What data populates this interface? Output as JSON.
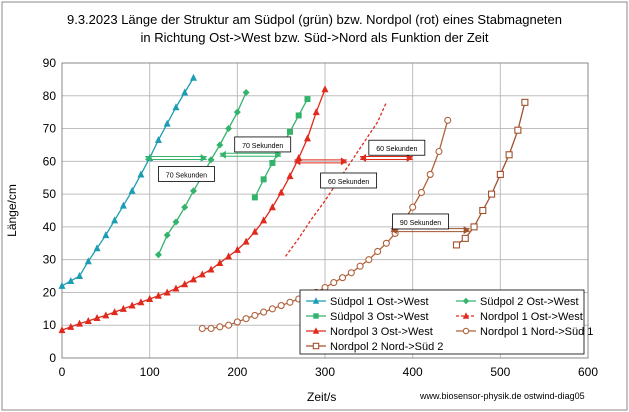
{
  "chart_data": {
    "type": "scatter",
    "title_line1": "9.3.2023 Länge der Struktur am Südpol (grün) bzw. Nordpol (rot) eines Stabmagneten",
    "title_line2": "in Richtung Ost->West  bzw. Süd->Nord als Funktion der Zeit",
    "xlabel": "Zeit/s",
    "ylabel": "Länge/cm",
    "xlim": [
      0,
      600
    ],
    "ylim": [
      0,
      90
    ],
    "xticks": [
      0,
      100,
      200,
      300,
      400,
      500,
      600
    ],
    "yticks": [
      0,
      10,
      20,
      30,
      40,
      50,
      60,
      70,
      80,
      90
    ],
    "grid": true,
    "legend_position": "bottom-right",
    "credit": "www.biosensor-physik.de  ostwind-diag05",
    "series": [
      {
        "name": "Südpol 1 Ost->West",
        "color": "#1c9db4",
        "marker": "triangle",
        "line": "solid",
        "x": [
          0,
          10,
          20,
          30,
          40,
          50,
          60,
          70,
          80,
          90,
          100,
          110,
          120,
          130,
          140,
          150
        ],
        "y": [
          22,
          23.5,
          25,
          29.5,
          33.5,
          37.5,
          42,
          46.5,
          51,
          56,
          61,
          66.5,
          71.5,
          76.5,
          81,
          85.5
        ]
      },
      {
        "name": "Südpol 2 Ost->West",
        "color": "#33b36b",
        "marker": "diamond",
        "line": "solid",
        "x": [
          110,
          120,
          130,
          140,
          150,
          160,
          170,
          180,
          190,
          200,
          210
        ],
        "y": [
          31.5,
          37.5,
          41.5,
          46,
          51,
          55.5,
          60.5,
          65,
          70,
          75,
          81
        ]
      },
      {
        "name": "Südpol 3 Ost->West",
        "color": "#33b36b",
        "marker": "square",
        "line": "solid",
        "x": [
          220,
          230,
          240,
          250,
          260,
          270,
          280
        ],
        "y": [
          49,
          54.5,
          59.5,
          64,
          69,
          74,
          79
        ]
      },
      {
        "name": "Nordpol 1 Ost->West",
        "color": "#e02a1d",
        "marker": "triangle",
        "line": "dotted",
        "x": [
          255,
          270,
          285,
          300,
          315,
          330,
          345,
          360,
          370
        ],
        "y": [
          31,
          36.5,
          42.5,
          48,
          54,
          60,
          66,
          72,
          78
        ]
      },
      {
        "name": "Nordpol 3 Ost->West",
        "color": "#e02a1d",
        "marker": "triangle",
        "line": "solid",
        "x": [
          0,
          10,
          20,
          30,
          40,
          50,
          60,
          70,
          80,
          90,
          100,
          110,
          120,
          130,
          140,
          150,
          160,
          170,
          180,
          190,
          200,
          210,
          220,
          230,
          240,
          250,
          260,
          270,
          280,
          290,
          300
        ],
        "y": [
          8.5,
          9.5,
          10.5,
          11.3,
          12.2,
          13,
          14,
          15,
          16,
          17,
          18,
          19,
          20,
          21.2,
          22.5,
          24,
          25.5,
          27,
          29,
          31,
          33,
          35.5,
          38.5,
          42,
          46,
          50.5,
          55.5,
          61,
          67,
          75,
          82
        ]
      },
      {
        "name": "Nordpol 1 Nord->Süd 1",
        "color": "#b0623a",
        "marker": "circle-open",
        "line": "solid",
        "x": [
          160,
          170,
          180,
          190,
          200,
          210,
          220,
          230,
          240,
          250,
          260,
          270,
          280,
          290,
          300,
          310,
          320,
          330,
          340,
          350,
          360,
          370,
          380,
          390,
          400,
          410,
          420,
          430,
          440
        ],
        "y": [
          9,
          9,
          9.5,
          10,
          11,
          12,
          13,
          14,
          15,
          16,
          17,
          18,
          19,
          20,
          21.5,
          23,
          24.5,
          26,
          28,
          30,
          32.5,
          35,
          38,
          42,
          46,
          50.5,
          56,
          63,
          72.5
        ]
      },
      {
        "name": "Nordpol 2 Nord->Süd 2",
        "color": "#a0522d",
        "marker": "square-open",
        "line": "solid",
        "x": [
          450,
          460,
          470,
          480,
          490,
          500,
          510,
          520,
          528
        ],
        "y": [
          34.5,
          36.5,
          40,
          45,
          50,
          56,
          62,
          69.5,
          78
        ]
      }
    ],
    "annotations": [
      {
        "text": "70 Sekunden",
        "x": 110,
        "y": 56,
        "x0": 95,
        "x1": 165,
        "arrow_y": 61,
        "color": "#33b36b"
      },
      {
        "text": "70 Sekunden",
        "x": 197,
        "y": 65,
        "x0": 180,
        "x1": 250,
        "arrow_y": 62,
        "color": "#33b36b"
      },
      {
        "text": "60 Sekunden",
        "x": 350,
        "y": 64,
        "x0": 340,
        "x1": 400,
        "arrow_y": 61,
        "color": "#e02a1d"
      },
      {
        "text": "60 Sekunden",
        "x": 295,
        "y": 54,
        "x0": 265,
        "x1": 325,
        "arrow_y": 60,
        "color": "#e02a1d"
      },
      {
        "text": "90 Sekunden",
        "x": 377,
        "y": 41.5,
        "x0": 375,
        "x1": 465,
        "arrow_y": 39,
        "color": "#a0522d"
      }
    ]
  }
}
